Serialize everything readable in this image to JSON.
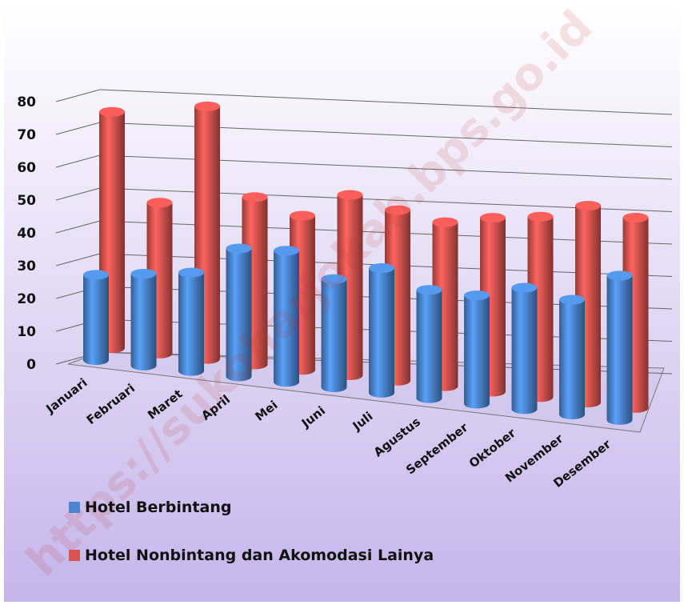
{
  "chart_data": {
    "type": "bar3d",
    "categories": [
      "Januari",
      "Februari",
      "Maret",
      "April",
      "Mei",
      "Juni",
      "Juli",
      "Agustus",
      "September",
      "Oktober",
      "November",
      "Desember"
    ],
    "series": [
      {
        "name": "Hotel Berbintang",
        "color": "#4a86d0",
        "values": [
          26,
          28,
          30,
          39,
          40,
          33,
          38,
          33,
          33,
          37,
          35,
          44
        ]
      },
      {
        "name": "Hotel Nonbintang dan Akomodasi Lainya",
        "color": "#d9534f",
        "values": [
          72,
          46,
          77,
          51,
          47,
          55,
          52,
          50,
          53,
          55,
          60,
          58
        ]
      }
    ],
    "ylim": [
      0,
      80
    ],
    "yticks": [
      0,
      10,
      20,
      30,
      40,
      50,
      60,
      70,
      80
    ],
    "grid": true,
    "watermark": "https://sukoharjokab.bps.go.id"
  }
}
